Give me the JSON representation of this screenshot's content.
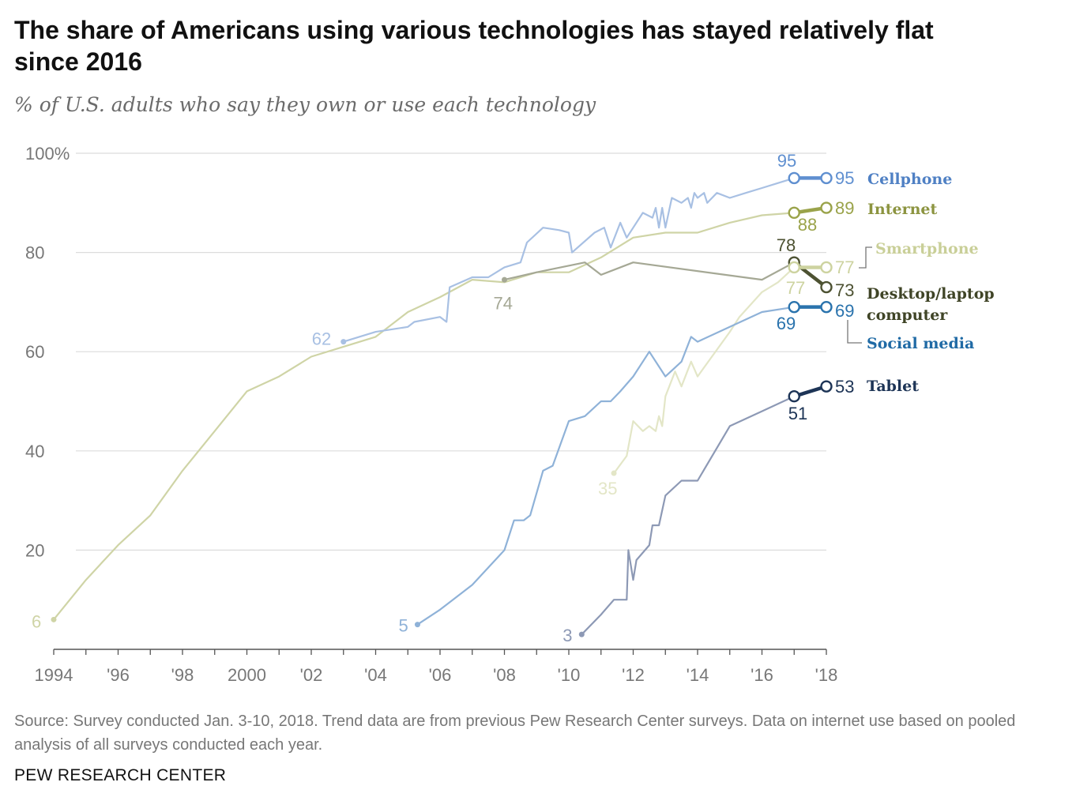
{
  "header": {
    "title": "The share of Americans using various technologies has stayed relatively flat since 2016",
    "subtitle": "% of U.S. adults who say they own or use each technology"
  },
  "footer": {
    "source": "Source: Survey conducted Jan. 3-10, 2018. Trend data are from previous Pew Research Center surveys. Data on internet use based on pooled analysis of all surveys conducted each year.",
    "credit": "PEW RESEARCH CENTER"
  },
  "chart_data": {
    "type": "line",
    "title": "The share of Americans using various technologies has stayed relatively flat since 2016",
    "subtitle": "% of U.S. adults who say they own or use each technology",
    "xlim": [
      1994,
      2018
    ],
    "ylim": [
      0,
      100
    ],
    "y_ticks": [
      {
        "value": 100,
        "label": "100%"
      },
      {
        "value": 80,
        "label": "80"
      },
      {
        "value": 60,
        "label": "60"
      },
      {
        "value": 40,
        "label": "40"
      },
      {
        "value": 20,
        "label": "20"
      }
    ],
    "x_ticks": [
      {
        "value": 1994,
        "label": "1994"
      },
      {
        "value": 1996,
        "label": "'96"
      },
      {
        "value": 1998,
        "label": "'98"
      },
      {
        "value": 2000,
        "label": "2000"
      },
      {
        "value": 2002,
        "label": "'02"
      },
      {
        "value": 2004,
        "label": "'04"
      },
      {
        "value": 2006,
        "label": "'06"
      },
      {
        "value": 2008,
        "label": "'08"
      },
      {
        "value": 2010,
        "label": "'10"
      },
      {
        "value": 2012,
        "label": "'12"
      },
      {
        "value": 2014,
        "label": "'14"
      },
      {
        "value": 2016,
        "label": "'16"
      },
      {
        "value": 2018,
        "label": "'18"
      }
    ],
    "grid": true,
    "series": [
      {
        "name": "Internet",
        "color": "#cfd4a6",
        "accent": "#9aa34a",
        "start_label": {
          "x": 1994,
          "y": 6,
          "text": "6"
        },
        "points": [
          [
            1994,
            6
          ],
          [
            1995,
            14
          ],
          [
            1996,
            21
          ],
          [
            1997,
            27
          ],
          [
            1998,
            36
          ],
          [
            1999,
            44
          ],
          [
            2000,
            52
          ],
          [
            2001,
            55
          ],
          [
            2002,
            59
          ],
          [
            2003,
            61
          ],
          [
            2004,
            63
          ],
          [
            2005,
            68
          ],
          [
            2006,
            71
          ],
          [
            2007,
            74.5
          ],
          [
            2008,
            74
          ],
          [
            2009,
            76
          ],
          [
            2010,
            76
          ],
          [
            2011,
            79
          ],
          [
            2012,
            83
          ],
          [
            2013,
            84
          ],
          [
            2014,
            84
          ],
          [
            2015,
            86
          ],
          [
            2016,
            87.5
          ],
          [
            2017,
            88
          ],
          [
            2018,
            89
          ]
        ],
        "end": [
          [
            2017,
            88
          ],
          [
            2018,
            89
          ]
        ],
        "end_labels": [
          {
            "text": "88"
          },
          {
            "text": "89"
          }
        ]
      },
      {
        "name": "Cellphone",
        "color": "#a8c0e3",
        "accent": "#5f8fd0",
        "start_label": {
          "x": 2003,
          "y": 62,
          "text": "62"
        },
        "points": [
          [
            2003,
            62
          ],
          [
            2004,
            64
          ],
          [
            2005,
            65
          ],
          [
            2005.2,
            66
          ],
          [
            2006,
            67
          ],
          [
            2006.2,
            66
          ],
          [
            2006.3,
            73
          ],
          [
            2007,
            75
          ],
          [
            2007.5,
            75
          ],
          [
            2008,
            77
          ],
          [
            2008.5,
            78
          ],
          [
            2008.7,
            82
          ],
          [
            2009.2,
            85
          ],
          [
            2009.7,
            84.5
          ],
          [
            2010,
            84
          ],
          [
            2010.1,
            80
          ],
          [
            2010.8,
            84
          ],
          [
            2011.1,
            85
          ],
          [
            2011.3,
            81
          ],
          [
            2011.6,
            86
          ],
          [
            2011.8,
            83
          ],
          [
            2012,
            85
          ],
          [
            2012.3,
            88
          ],
          [
            2012.6,
            87
          ],
          [
            2012.7,
            89
          ],
          [
            2012.8,
            85
          ],
          [
            2012.9,
            89
          ],
          [
            2013,
            85
          ],
          [
            2013.2,
            91
          ],
          [
            2013.5,
            90
          ],
          [
            2013.7,
            91
          ],
          [
            2013.8,
            89
          ],
          [
            2013.9,
            92
          ],
          [
            2014,
            91
          ],
          [
            2014.2,
            92
          ],
          [
            2014.3,
            90
          ],
          [
            2014.6,
            92
          ],
          [
            2015,
            91
          ],
          [
            2015.5,
            92
          ],
          [
            2016,
            93
          ],
          [
            2016.5,
            94
          ],
          [
            2017,
            95
          ],
          [
            2018,
            95
          ]
        ],
        "end": [
          [
            2017,
            95
          ],
          [
            2018,
            95
          ]
        ],
        "end_labels": [
          {
            "text": "95"
          },
          {
            "text": "95"
          }
        ]
      },
      {
        "name": "Desktop/laptop computer",
        "color": "#a5a895",
        "accent": "#4d5232",
        "start_label": {
          "x": 2008,
          "y": 74,
          "text": "74"
        },
        "points": [
          [
            2008,
            74.5
          ],
          [
            2009,
            76
          ],
          [
            2010.5,
            78
          ],
          [
            2011,
            75.5
          ],
          [
            2012,
            78
          ],
          [
            2016,
            74.5
          ],
          [
            2017,
            78
          ],
          [
            2018,
            73
          ]
        ],
        "end": [
          [
            2017,
            78
          ],
          [
            2018,
            73
          ]
        ],
        "end_labels": [
          {
            "text": "78"
          },
          {
            "text": "73"
          }
        ]
      },
      {
        "name": "Smartphone",
        "color": "#e3e6c7",
        "accent": "#cdd3a0",
        "start_label": {
          "x": 2011.4,
          "y": 35,
          "text": "35"
        },
        "points": [
          [
            2011.4,
            35.5
          ],
          [
            2011.8,
            39
          ],
          [
            2012,
            46
          ],
          [
            2012.3,
            44
          ],
          [
            2012.5,
            45
          ],
          [
            2012.7,
            44
          ],
          [
            2012.8,
            47
          ],
          [
            2012.9,
            45
          ],
          [
            2013,
            51
          ],
          [
            2013.3,
            56
          ],
          [
            2013.5,
            53
          ],
          [
            2013.8,
            58
          ],
          [
            2014,
            55
          ],
          [
            2015,
            64
          ],
          [
            2015.3,
            67
          ],
          [
            2016,
            72
          ],
          [
            2016.5,
            74
          ],
          [
            2017,
            77
          ],
          [
            2018,
            77
          ]
        ],
        "end": [
          [
            2017,
            77
          ],
          [
            2018,
            77
          ]
        ],
        "end_labels": [
          {
            "text": "77"
          },
          {
            "text": "77"
          }
        ]
      },
      {
        "name": "Social media",
        "color": "#8fb2d8",
        "accent": "#2a73ad",
        "start_label": {
          "x": 2005.3,
          "y": 5,
          "text": "5"
        },
        "points": [
          [
            2005.3,
            5
          ],
          [
            2006,
            8
          ],
          [
            2007,
            13
          ],
          [
            2008,
            20
          ],
          [
            2008.3,
            26
          ],
          [
            2008.6,
            26
          ],
          [
            2008.8,
            27
          ],
          [
            2009.2,
            36
          ],
          [
            2009.5,
            37
          ],
          [
            2010,
            46
          ],
          [
            2010.5,
            47
          ],
          [
            2011,
            50
          ],
          [
            2011.3,
            50
          ],
          [
            2011.6,
            52
          ],
          [
            2012,
            55
          ],
          [
            2012.5,
            60
          ],
          [
            2013,
            55
          ],
          [
            2013.5,
            58
          ],
          [
            2013.8,
            63
          ],
          [
            2014,
            62
          ],
          [
            2015,
            65
          ],
          [
            2016,
            68
          ],
          [
            2017,
            69
          ],
          [
            2018,
            69
          ]
        ],
        "end": [
          [
            2017,
            69
          ],
          [
            2018,
            69
          ]
        ],
        "end_labels": [
          {
            "text": "69"
          },
          {
            "text": "69"
          }
        ]
      },
      {
        "name": "Tablet",
        "color": "#8d99b5",
        "accent": "#1d3456",
        "start_label": {
          "x": 2010.4,
          "y": 3,
          "text": "3"
        },
        "points": [
          [
            2010.4,
            3
          ],
          [
            2011,
            7
          ],
          [
            2011.4,
            10
          ],
          [
            2011.8,
            10
          ],
          [
            2011.85,
            20
          ],
          [
            2012,
            14
          ],
          [
            2012.1,
            18
          ],
          [
            2012.5,
            21
          ],
          [
            2012.6,
            25
          ],
          [
            2012.8,
            25
          ],
          [
            2013,
            31
          ],
          [
            2013.5,
            34
          ],
          [
            2014,
            34
          ],
          [
            2015,
            45
          ],
          [
            2016,
            48
          ],
          [
            2017,
            51
          ],
          [
            2018,
            53
          ]
        ],
        "end": [
          [
            2017,
            51
          ],
          [
            2018,
            53
          ]
        ],
        "end_labels": [
          {
            "text": "51"
          },
          {
            "text": "53"
          }
        ]
      }
    ],
    "legend": {
      "placement": "right",
      "items": [
        {
          "name": "Cellphone",
          "color": "#4f80c4"
        },
        {
          "name": "Internet",
          "color": "#8c9440"
        },
        {
          "name": "Smartphone",
          "color": "#c9cf98"
        },
        {
          "name": "Desktop/laptop",
          "color": "#3f4426"
        },
        {
          "name": "computer",
          "color": "#3f4426"
        },
        {
          "name": "Social media",
          "color": "#1f6aa5"
        },
        {
          "name": "Tablet",
          "color": "#1d3456"
        }
      ]
    }
  }
}
